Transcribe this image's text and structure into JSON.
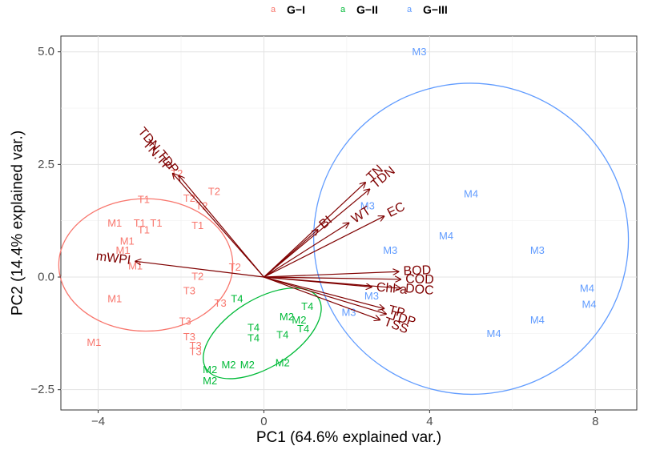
{
  "chart_data": {
    "type": "scatter",
    "subtype": "pca-biplot",
    "title": "",
    "xlabel": "PC1 (64.6% explained var.)",
    "ylabel": "PC2 (14.4% explained var.)",
    "xlim": [
      -4.9,
      9.0
    ],
    "ylim": [
      -2.95,
      5.35
    ],
    "xticks": [
      -4,
      0,
      4,
      8
    ],
    "xtick_labels": [
      "−4",
      "0",
      "4",
      "8"
    ],
    "yticks": [
      -2.5,
      0.0,
      2.5,
      5.0
    ],
    "ytick_labels": [
      "−2.5",
      "0.0",
      "2.5",
      "5.0"
    ],
    "grid": true,
    "legend_position": "top",
    "legend": [
      {
        "key": "a",
        "label": "G−I",
        "color": "#F8766D"
      },
      {
        "key": "a",
        "label": "G−II",
        "color": "#00BA38"
      },
      {
        "key": "a",
        "label": "G−III",
        "color": "#619CFF"
      }
    ],
    "groups": [
      {
        "name": "G−I",
        "color": "#F8766D",
        "ellipse": {
          "cx": -2.85,
          "cy": 0.27,
          "rx": 2.1,
          "ry": 1.47,
          "angle_deg": 0
        },
        "points": [
          {
            "x": -2.1,
            "y": 2.3,
            "label": "T2"
          },
          {
            "x": -1.2,
            "y": 1.9,
            "label": "T2"
          },
          {
            "x": -1.8,
            "y": 1.75,
            "label": "T2"
          },
          {
            "x": -1.5,
            "y": 1.58,
            "label": "T2"
          },
          {
            "x": -2.9,
            "y": 1.72,
            "label": "T1"
          },
          {
            "x": -3.0,
            "y": 1.2,
            "label": "T1"
          },
          {
            "x": -2.6,
            "y": 1.2,
            "label": "T1"
          },
          {
            "x": -2.9,
            "y": 1.05,
            "label": "T1"
          },
          {
            "x": -1.6,
            "y": 1.15,
            "label": "T1"
          },
          {
            "x": -3.6,
            "y": 1.2,
            "label": "M1"
          },
          {
            "x": -3.3,
            "y": 0.8,
            "label": "M1"
          },
          {
            "x": -3.4,
            "y": 0.6,
            "label": "M1"
          },
          {
            "x": -3.1,
            "y": 0.25,
            "label": "M1"
          },
          {
            "x": -3.6,
            "y": -0.48,
            "label": "M1"
          },
          {
            "x": -4.1,
            "y": -1.45,
            "label": "M1"
          },
          {
            "x": -0.7,
            "y": 0.22,
            "label": "T2"
          },
          {
            "x": -1.6,
            "y": 0.02,
            "label": "T2"
          },
          {
            "x": -1.8,
            "y": -0.3,
            "label": "T3"
          },
          {
            "x": -1.05,
            "y": -0.58,
            "label": "T3"
          },
          {
            "x": -1.9,
            "y": -0.98,
            "label": "T3"
          },
          {
            "x": -1.8,
            "y": -1.32,
            "label": "T3"
          },
          {
            "x": -1.65,
            "y": -1.52,
            "label": "T3"
          },
          {
            "x": -1.65,
            "y": -1.65,
            "label": "T3"
          }
        ]
      },
      {
        "name": "G−II",
        "color": "#00BA38",
        "ellipse": {
          "cx": -0.04,
          "cy": -1.25,
          "rx": 1.6,
          "ry": 0.75,
          "angle_deg": 32
        },
        "points": [
          {
            "x": -0.65,
            "y": -0.48,
            "label": "T4"
          },
          {
            "x": 1.05,
            "y": -0.65,
            "label": "T4"
          },
          {
            "x": 0.55,
            "y": -0.88,
            "label": "M2"
          },
          {
            "x": 0.85,
            "y": -0.95,
            "label": "M2"
          },
          {
            "x": -0.25,
            "y": -1.12,
            "label": "T4"
          },
          {
            "x": 0.95,
            "y": -1.15,
            "label": "T4"
          },
          {
            "x": -0.25,
            "y": -1.35,
            "label": "T4"
          },
          {
            "x": 0.45,
            "y": -1.28,
            "label": "T4"
          },
          {
            "x": -0.85,
            "y": -1.95,
            "label": "M2"
          },
          {
            "x": -0.4,
            "y": -1.95,
            "label": "M2"
          },
          {
            "x": 0.45,
            "y": -1.9,
            "label": "M2"
          },
          {
            "x": -1.3,
            "y": -2.05,
            "label": "M2"
          },
          {
            "x": -1.3,
            "y": -2.3,
            "label": "M2"
          }
        ]
      },
      {
        "name": "G−III",
        "color": "#619CFF",
        "ellipse": {
          "cx": 5.0,
          "cy": 0.85,
          "rx": 3.8,
          "ry": 3.45,
          "angle_deg": -12
        },
        "points": [
          {
            "x": 3.75,
            "y": 5.0,
            "label": "M3"
          },
          {
            "x": 5.0,
            "y": 1.85,
            "label": "M4"
          },
          {
            "x": 2.5,
            "y": 1.58,
            "label": "M3"
          },
          {
            "x": 4.4,
            "y": 0.92,
            "label": "M4"
          },
          {
            "x": 3.05,
            "y": 0.6,
            "label": "M3"
          },
          {
            "x": 6.6,
            "y": 0.6,
            "label": "M3"
          },
          {
            "x": 7.8,
            "y": -0.25,
            "label": "M4"
          },
          {
            "x": 2.6,
            "y": -0.42,
            "label": "M3"
          },
          {
            "x": 7.85,
            "y": -0.6,
            "label": "M4"
          },
          {
            "x": 2.05,
            "y": -0.78,
            "label": "M3"
          },
          {
            "x": 6.6,
            "y": -0.95,
            "label": "M4"
          },
          {
            "x": 5.55,
            "y": -1.25,
            "label": "M4"
          }
        ]
      }
    ],
    "loadings": [
      {
        "label": "TDN.TDP",
        "x": -2.05,
        "y": 2.25
      },
      {
        "label": "TN.TP",
        "x": -2.2,
        "y": 2.3
      },
      {
        "label": "mWPI",
        "x": -3.1,
        "y": 0.35
      },
      {
        "label": "BI",
        "x": 1.3,
        "y": 1.05
      },
      {
        "label": "WT",
        "x": 2.05,
        "y": 1.2
      },
      {
        "label": "TN",
        "x": 2.45,
        "y": 2.1
      },
      {
        "label": "TDN",
        "x": 2.55,
        "y": 1.95
      },
      {
        "label": "EC",
        "x": 2.9,
        "y": 1.35
      },
      {
        "label": "BOD",
        "x": 3.25,
        "y": 0.12
      },
      {
        "label": "COD",
        "x": 3.3,
        "y": -0.05
      },
      {
        "label": "DOC",
        "x": 3.3,
        "y": -0.25
      },
      {
        "label": "Chl-a",
        "x": 2.6,
        "y": -0.22
      },
      {
        "label": "TP",
        "x": 2.9,
        "y": -0.7
      },
      {
        "label": "TDP",
        "x": 2.95,
        "y": -0.82
      },
      {
        "label": "TSS",
        "x": 2.8,
        "y": -0.95
      }
    ]
  }
}
